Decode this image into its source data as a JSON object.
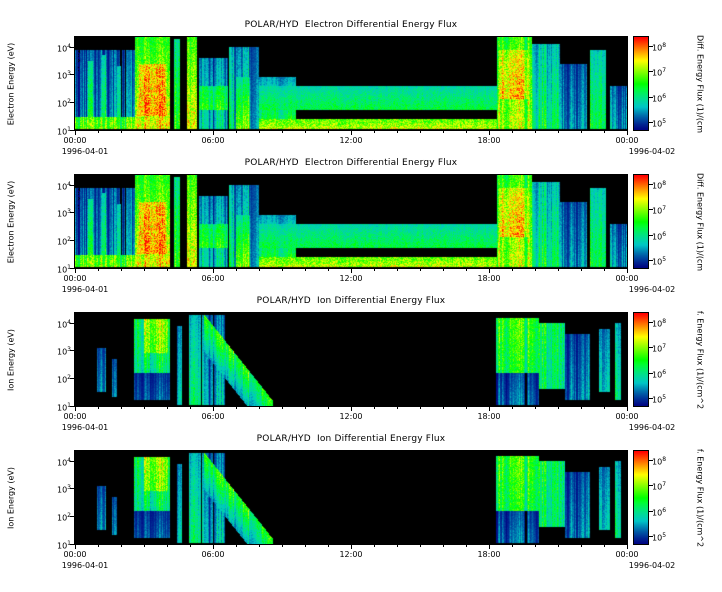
{
  "figure": {
    "background": "#ffffff",
    "text_color": "#000000",
    "plot_background": "#000000",
    "panels": [
      {
        "title": "POLAR/HYD  Electron Differential Energy Flux",
        "ylabel": "Electron Energy (eV)",
        "species": "electron",
        "cbar_label": "Diff. Energy Flux (1)/(cm",
        "yticks": [
          {
            "base": "10",
            "exp": "4"
          },
          {
            "base": "10",
            "exp": "3"
          },
          {
            "base": "10",
            "exp": "2"
          },
          {
            "base": "10",
            "exp": "1"
          }
        ],
        "cticks": [
          {
            "base": "10",
            "exp": "8"
          },
          {
            "base": "10",
            "exp": "7"
          },
          {
            "base": "10",
            "exp": "6"
          },
          {
            "base": "10",
            "exp": "5"
          }
        ],
        "xticks": [
          "00:00",
          "06:00",
          "12:00",
          "18:00",
          "00:00"
        ],
        "date_left": "1996-04-01",
        "date_right": "1996-04-02"
      },
      {
        "title": "POLAR/HYD  Electron Differential Energy Flux",
        "ylabel": "Electron Energy (eV)",
        "species": "electron",
        "cbar_label": "Diff. Energy Flux (1)/(cm",
        "yticks": [
          {
            "base": "10",
            "exp": "4"
          },
          {
            "base": "10",
            "exp": "3"
          },
          {
            "base": "10",
            "exp": "2"
          },
          {
            "base": "10",
            "exp": "1"
          }
        ],
        "cticks": [
          {
            "base": "10",
            "exp": "8"
          },
          {
            "base": "10",
            "exp": "7"
          },
          {
            "base": "10",
            "exp": "6"
          },
          {
            "base": "10",
            "exp": "5"
          }
        ],
        "xticks": [
          "00:00",
          "06:00",
          "12:00",
          "18:00",
          "00:00"
        ],
        "date_left": "1996-04-01",
        "date_right": "1996-04-02"
      },
      {
        "title": "POLAR/HYD  Ion Differential Energy Flux",
        "ylabel": "Ion Energy (eV)",
        "species": "ion",
        "cbar_label": "f. Energy Flux (1)/(cm^2",
        "yticks": [
          {
            "base": "10",
            "exp": "4"
          },
          {
            "base": "10",
            "exp": "3"
          },
          {
            "base": "10",
            "exp": "2"
          },
          {
            "base": "10",
            "exp": "1"
          }
        ],
        "cticks": [
          {
            "base": "10",
            "exp": "8"
          },
          {
            "base": "10",
            "exp": "7"
          },
          {
            "base": "10",
            "exp": "6"
          },
          {
            "base": "10",
            "exp": "5"
          }
        ],
        "xticks": [
          "00:00",
          "06:00",
          "12:00",
          "18:00",
          "00:00"
        ],
        "date_left": "1996-04-01",
        "date_right": "1996-04-02"
      },
      {
        "title": "POLAR/HYD  Ion Differential Energy Flux",
        "ylabel": "Ion Energy (eV)",
        "species": "ion",
        "cbar_label": "f. Energy Flux (1)/(cm^2",
        "yticks": [
          {
            "base": "10",
            "exp": "4"
          },
          {
            "base": "10",
            "exp": "3"
          },
          {
            "base": "10",
            "exp": "2"
          },
          {
            "base": "10",
            "exp": "1"
          }
        ],
        "cticks": [
          {
            "base": "10",
            "exp": "8"
          },
          {
            "base": "10",
            "exp": "7"
          },
          {
            "base": "10",
            "exp": "6"
          },
          {
            "base": "10",
            "exp": "5"
          }
        ],
        "xticks": [
          "00:00",
          "06:00",
          "12:00",
          "18:00",
          "00:00"
        ],
        "date_left": "1996-04-01",
        "date_right": "1996-04-02"
      }
    ]
  },
  "chart_data": {
    "type": "heatmap",
    "panels": [
      {
        "title": "POLAR/HYD  Electron Differential Energy Flux",
        "ylabel": "Electron Energy (eV)",
        "species": "electron",
        "colorbar_label": "Diff. Energy Flux (1)/(cm"
      },
      {
        "title": "POLAR/HYD  Electron Differential Energy Flux",
        "ylabel": "Electron Energy (eV)",
        "species": "electron",
        "colorbar_label": "Diff. Energy Flux (1)/(cm"
      },
      {
        "title": "POLAR/HYD  Ion Differential Energy Flux",
        "ylabel": "Ion Energy (eV)",
        "species": "ion",
        "colorbar_label": "f. Energy Flux (1)/(cm^2"
      },
      {
        "title": "POLAR/HYD  Ion Differential Energy Flux",
        "ylabel": "Ion Energy (eV)",
        "species": "ion",
        "colorbar_label": "f. Energy Flux (1)/(cm^2"
      }
    ],
    "x_axis": {
      "tick_labels": [
        "00:00",
        "06:00",
        "12:00",
        "18:00",
        "00:00"
      ],
      "range_hours": [
        0,
        24
      ],
      "date_start": "1996-04-01",
      "date_end": "1996-04-02"
    },
    "y_axis": {
      "scale": "log",
      "tick_labels": [
        "10^1",
        "10^2",
        "10^3",
        "10^4"
      ],
      "range_eV": [
        10,
        22000
      ]
    },
    "colorbar": {
      "scale": "log",
      "tick_labels": [
        "10^5",
        "10^6",
        "10^7",
        "10^8"
      ],
      "range_flux": [
        100000,
        100000000
      ]
    },
    "colormap": [
      "#000000",
      "#0000ff",
      "#00ffff",
      "#00ff00",
      "#ffff00",
      "#ff8000",
      "#ff0000"
    ],
    "render": {
      "t_range_hours": [
        0,
        24
      ],
      "e_range_log10_eV": [
        1.0,
        4.35
      ],
      "flux_range_log10": [
        4.7,
        8.35
      ]
    },
    "features": {
      "electron": [
        {
          "t": [
            0,
            2.6
          ],
          "e": [
            1,
            3.9
          ],
          "v": 0.42,
          "stripe": 0.75
        },
        {
          "t": [
            0,
            2.6
          ],
          "e": [
            1,
            1.45
          ],
          "v": 0.8,
          "stripe": 0.35,
          "fade": 0.1
        },
        {
          "t": [
            0.55,
            0.75
          ],
          "e": [
            1,
            3.5
          ],
          "v": 0.62,
          "stripe": 0.3
        },
        {
          "t": [
            1.15,
            1.35
          ],
          "e": [
            1,
            3.7
          ],
          "v": 0.62,
          "stripe": 0.3
        },
        {
          "t": [
            1.8,
            2.0
          ],
          "e": [
            1,
            3.3
          ],
          "v": 0.58,
          "stripe": 0.3
        },
        {
          "t": [
            2.6,
            4.1
          ],
          "e": [
            1,
            4.35
          ],
          "v": 0.88,
          "stripe": 0.22,
          "fade": 0.3
        },
        {
          "t": [
            2.75,
            3.95
          ],
          "e": [
            1.5,
            3.4
          ],
          "v": 0.97,
          "stripe": 0.15,
          "fade": 0.1
        },
        {
          "t": [
            4.3,
            4.55
          ],
          "e": [
            1,
            4.3
          ],
          "v": 0.7,
          "stripe": 0.3
        },
        {
          "t": [
            4.85,
            5.3
          ],
          "e": [
            1,
            4.35
          ],
          "v": 0.85,
          "stripe": 0.28,
          "fade": 0.25
        },
        {
          "t": [
            5.4,
            6.65
          ],
          "e": [
            1,
            3.6
          ],
          "v": 0.5,
          "stripe": 0.6
        },
        {
          "t": [
            5.4,
            6.65
          ],
          "e": [
            1.7,
            2.6
          ],
          "v": 0.66,
          "stripe": 0.35,
          "fade": 0.2
        },
        {
          "t": [
            6.7,
            8.0
          ],
          "e": [
            1,
            4.0
          ],
          "v": 0.55,
          "stripe": 0.55
        },
        {
          "t": [
            7.0,
            7.6
          ],
          "e": [
            1,
            2.9
          ],
          "v": 0.8,
          "stripe": 0.3,
          "fade": 0.45
        },
        {
          "t": [
            8.0,
            9.6
          ],
          "e": [
            1.35,
            2.9
          ],
          "v": 0.58,
          "stripe": 0.3,
          "fade": 0.5
        },
        {
          "t": [
            8.0,
            18.35
          ],
          "e": [
            1.72,
            2.58
          ],
          "v": 0.5,
          "stripe": 0.12,
          "fade": 0.3
        },
        {
          "t": [
            8.0,
            18.35
          ],
          "e": [
            1.0,
            1.38
          ],
          "v": 0.75,
          "stripe": 0.1,
          "fade": 0.15
        },
        {
          "t": [
            18.35,
            19.9
          ],
          "e": [
            1,
            4.35
          ],
          "v": 0.82,
          "stripe": 0.3,
          "fade": 0.2
        },
        {
          "t": [
            18.5,
            19.7
          ],
          "e": [
            2.1,
            3.9
          ],
          "v": 0.93,
          "stripe": 0.2,
          "fade": 0.15
        },
        {
          "t": [
            19.9,
            21.1
          ],
          "e": [
            1,
            4.1
          ],
          "v": 0.62,
          "stripe": 0.5,
          "fade": 0.35
        },
        {
          "t": [
            21.1,
            22.3
          ],
          "e": [
            1,
            3.4
          ],
          "v": 0.45,
          "stripe": 0.6
        },
        {
          "t": [
            22.4,
            23.1
          ],
          "e": [
            1,
            3.9
          ],
          "v": 0.62,
          "stripe": 0.35
        },
        {
          "t": [
            23.3,
            24
          ],
          "e": [
            1,
            2.6
          ],
          "v": 0.4,
          "stripe": 0.6
        }
      ],
      "ion": [
        {
          "t": [
            0.95,
            1.35
          ],
          "e": [
            1.5,
            3.1
          ],
          "v": 0.33,
          "stripe": 0.55
        },
        {
          "t": [
            1.6,
            1.8
          ],
          "e": [
            1.3,
            2.7
          ],
          "v": 0.28,
          "stripe": 0.5
        },
        {
          "t": [
            2.55,
            4.1
          ],
          "e": [
            2.2,
            4.15
          ],
          "v": 0.55,
          "stripe": 0.45,
          "fade": -0.2
        },
        {
          "t": [
            3.0,
            4.05
          ],
          "e": [
            2.9,
            4.15
          ],
          "v": 0.72,
          "stripe": 0.28,
          "fade": -0.1
        },
        {
          "t": [
            2.55,
            4.1
          ],
          "e": [
            1.2,
            2.2
          ],
          "v": 0.26,
          "stripe": 0.6
        },
        {
          "t": [
            4.4,
            4.65
          ],
          "e": [
            1.0,
            3.9
          ],
          "v": 0.45,
          "stripe": 0.45
        },
        {
          "t": [
            4.95,
            5.45
          ],
          "e": [
            1.0,
            4.3
          ],
          "v": 0.55,
          "stripe": 0.5
        },
        {
          "t": [
            5.5,
            6.5
          ],
          "e": [
            1.0,
            4.3
          ],
          "v": 0.45,
          "stripe": 0.75
        },
        {
          "ramp": true,
          "t": [
            5.6,
            8.6
          ],
          "e0": 4.2,
          "e1": 1.05,
          "w": 1.25,
          "v": 0.68,
          "stripe": 0.35
        },
        {
          "t": [
            18.3,
            20.2
          ],
          "e": [
            2.2,
            4.2
          ],
          "v": 0.62,
          "stripe": 0.35,
          "fade": -0.12
        },
        {
          "t": [
            18.3,
            20.2
          ],
          "e": [
            1.0,
            2.2
          ],
          "v": 0.32,
          "stripe": 0.7
        },
        {
          "t": [
            20.2,
            21.3
          ],
          "e": [
            1.6,
            4.0
          ],
          "v": 0.55,
          "stripe": 0.45,
          "fade": -0.1
        },
        {
          "t": [
            21.3,
            22.4
          ],
          "e": [
            1.2,
            3.6
          ],
          "v": 0.42,
          "stripe": 0.65
        },
        {
          "t": [
            22.8,
            23.3
          ],
          "e": [
            1.5,
            3.8
          ],
          "v": 0.45,
          "stripe": 0.5
        },
        {
          "t": [
            23.5,
            23.75
          ],
          "e": [
            1.2,
            4.0
          ],
          "v": 0.55,
          "stripe": 0.35
        }
      ]
    }
  }
}
